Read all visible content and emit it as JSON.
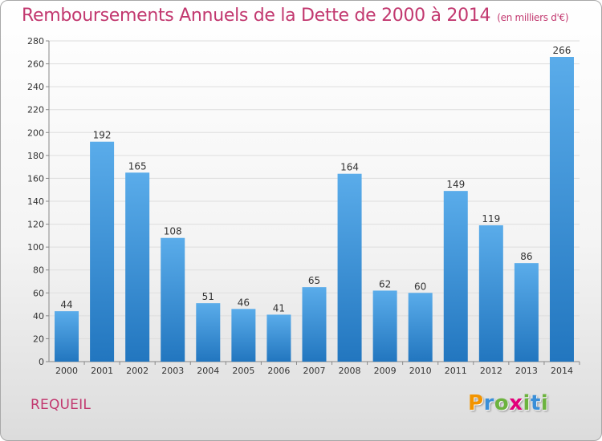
{
  "title": "Remboursements Annuels de la Dette de 2000 à 2014",
  "unit_note": "(en milliers d'€)",
  "commune": "REQUEIL",
  "logo": {
    "text": "Proxiti",
    "letter_colors": [
      "#f29400",
      "#3a8fd8",
      "#6cb33e",
      "#e2007a",
      "#6cb33e",
      "#3a8fd8",
      "#6cb33e"
    ]
  },
  "colors": {
    "bar_top": "#5aacea",
    "bar_bottom": "#2276bf",
    "title": "#c2386f",
    "grid": "#dddddd"
  },
  "chart_data": {
    "type": "bar",
    "title": "Remboursements Annuels de la Dette de 2000 à 2014",
    "xlabel": "",
    "ylabel": "",
    "categories": [
      "2000",
      "2001",
      "2002",
      "2003",
      "2004",
      "2005",
      "2006",
      "2007",
      "2008",
      "2009",
      "2010",
      "2011",
      "2012",
      "2013",
      "2014"
    ],
    "values": [
      44,
      192,
      165,
      108,
      51,
      46,
      41,
      65,
      164,
      62,
      60,
      149,
      119,
      86,
      266
    ],
    "ylim": [
      0,
      280
    ],
    "yticks": [
      0,
      20,
      40,
      60,
      80,
      100,
      120,
      140,
      160,
      180,
      200,
      220,
      240,
      260,
      280
    ],
    "grid": true,
    "data_labels": true
  }
}
